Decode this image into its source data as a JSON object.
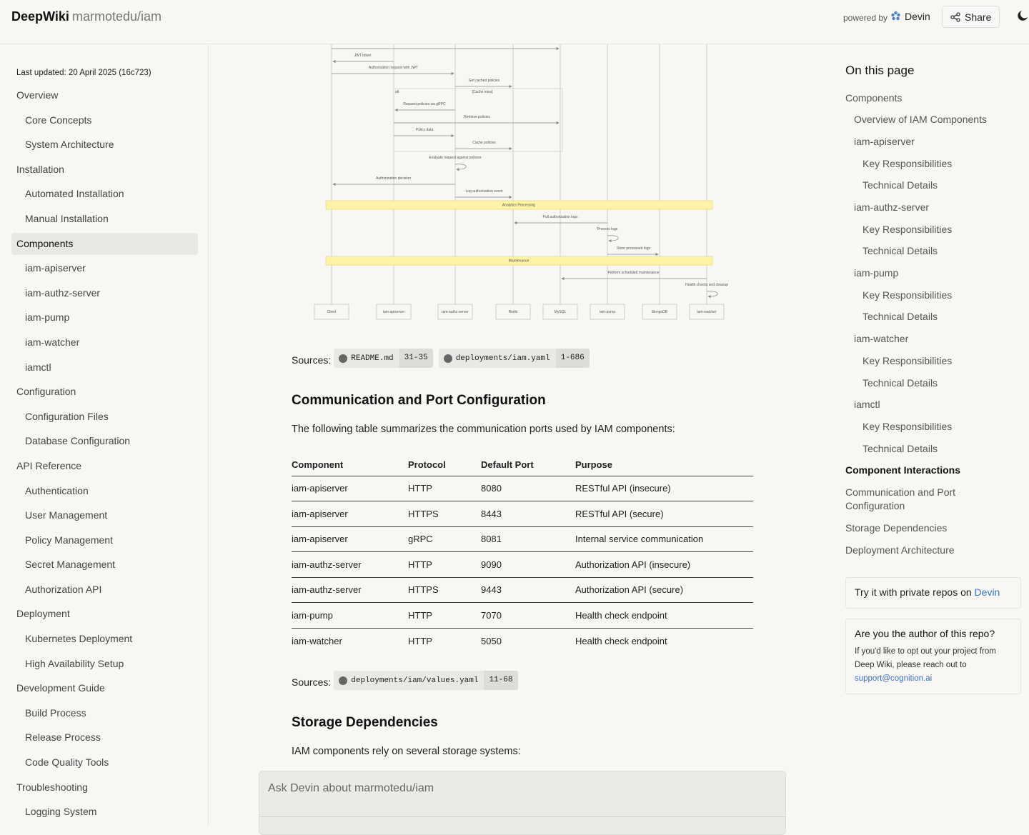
{
  "header": {
    "brand": "DeepWiki",
    "repo": "marmotedu/iam",
    "powered_by": "powered by",
    "devin": "Devin",
    "share": "Share"
  },
  "sidebar": {
    "last_updated": "Last updated: 20 April 2025 (16c723)",
    "nav": [
      {
        "title": "Overview",
        "children": [
          "Core Concepts",
          "System Architecture"
        ]
      },
      {
        "title": "Installation",
        "children": [
          "Automated Installation",
          "Manual Installation"
        ]
      },
      {
        "title": "Components",
        "children": [
          "iam-apiserver",
          "iam-authz-server",
          "iam-pump",
          "iam-watcher",
          "iamctl"
        ]
      },
      {
        "title": "Configuration",
        "children": [
          "Configuration Files",
          "Database Configuration"
        ]
      },
      {
        "title": "API Reference",
        "children": [
          "Authentication",
          "User Management",
          "Policy Management",
          "Secret Management",
          "Authorization API"
        ]
      },
      {
        "title": "Deployment",
        "children": [
          "Kubernetes Deployment",
          "High Availability Setup"
        ]
      },
      {
        "title": "Development Guide",
        "children": [
          "Build Process",
          "Release Process",
          "Code Quality Tools"
        ]
      },
      {
        "title": "Troubleshooting",
        "children": [
          "Logging System"
        ]
      }
    ]
  },
  "diagram": {
    "participants": [
      "Client",
      "iam-apiserver",
      "iam-authz-server",
      "Redis",
      "MySQL",
      "iam-pump",
      "MongoDB",
      "iam-watcher"
    ],
    "messages": [
      "JWT token",
      "Authorization request with JWT",
      "Get cached policies",
      "Request policies via gRPC",
      "Retrieve policies",
      "Policy data",
      "Cache policies",
      "Evaluate request against policies",
      "Authorization decision",
      "Log authorization event",
      "Pull authorization logs",
      "Process logs",
      "Store processed logs",
      "Perform scheduled maintenance",
      "Health checks and cleanup"
    ],
    "alt": {
      "label": "alt",
      "condition": "[Cache miss]"
    },
    "bands": [
      "Analytics Processing",
      "Maintenance"
    ]
  },
  "sources_1": {
    "label": "Sources:",
    "files": [
      {
        "name": "README.md",
        "lines": "31-35"
      },
      {
        "name": "deployments/iam.yaml",
        "lines": "1-686"
      }
    ]
  },
  "section_1": {
    "heading": "Communication and Port Configuration",
    "intro": "The following table summarizes the communication ports used by IAM components:",
    "table": {
      "columns": [
        "Component",
        "Protocol",
        "Default Port",
        "Purpose"
      ],
      "rows": [
        [
          "iam-apiserver",
          "HTTP",
          8080,
          "RESTful API (insecure)"
        ],
        [
          "iam-apiserver",
          "HTTPS",
          8443,
          "RESTful API (secure)"
        ],
        [
          "iam-apiserver",
          "gRPC",
          8081,
          "Internal service communication"
        ],
        [
          "iam-authz-server",
          "HTTP",
          9090,
          "Authorization API (insecure)"
        ],
        [
          "iam-authz-server",
          "HTTPS",
          9443,
          "Authorization API (secure)"
        ],
        [
          "iam-pump",
          "HTTP",
          7070,
          "Health check endpoint"
        ],
        [
          "iam-watcher",
          "HTTP",
          5050,
          "Health check endpoint"
        ]
      ]
    }
  },
  "sources_2": {
    "label": "Sources:",
    "files": [
      {
        "name": "deployments/iam/values.yaml",
        "lines": "11-68"
      }
    ]
  },
  "section_2": {
    "heading": "Storage Dependencies",
    "intro": "IAM components rely on several storage systems:"
  },
  "toc": {
    "title": "On this page",
    "items": [
      {
        "title": "Components",
        "children": [
          {
            "title": "Overview of IAM Components"
          },
          {
            "title": "iam-apiserver",
            "children": [
              {
                "title": "Key Responsibilities"
              },
              {
                "title": "Technical Details"
              }
            ]
          },
          {
            "title": "iam-authz-server",
            "children": [
              {
                "title": "Key Responsibilities"
              },
              {
                "title": "Technical Details"
              }
            ]
          },
          {
            "title": "iam-pump",
            "children": [
              {
                "title": "Key Responsibilities"
              },
              {
                "title": "Technical Details"
              }
            ]
          },
          {
            "title": "iam-watcher",
            "children": [
              {
                "title": "Key Responsibilities"
              },
              {
                "title": "Technical Details"
              }
            ]
          },
          {
            "title": "iamctl",
            "children": [
              {
                "title": "Key Responsibilities"
              },
              {
                "title": "Technical Details"
              }
            ]
          }
        ]
      },
      {
        "title": "Component Interactions"
      },
      {
        "title": "Communication and Port Configuration"
      },
      {
        "title": "Storage Dependencies"
      },
      {
        "title": "Deployment Architecture"
      }
    ]
  },
  "cards": {
    "private": {
      "text": "Try it with private repos on",
      "link": "Devin"
    },
    "author": {
      "title": "Are you the author of this repo?",
      "text": "If you'd like to opt out your project from Deep Wiki, please reach out to",
      "email": "support@cognition.ai"
    }
  },
  "ask": {
    "placeholder": "Ask Devin about marmotedu/iam"
  }
}
